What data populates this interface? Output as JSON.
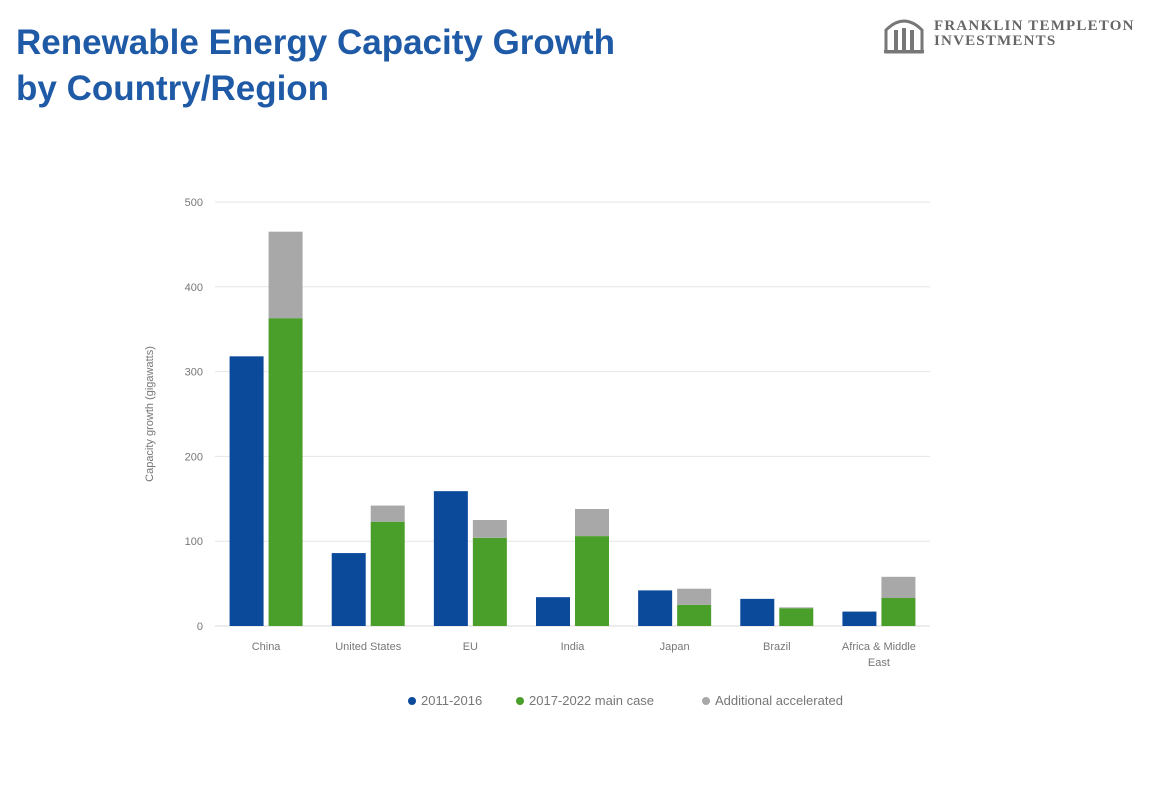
{
  "header": {
    "title_line1": "Renewable Energy Capacity Growth",
    "title_line2": "by Country/Region",
    "logo_line1": "FRANKLIN TEMPLETON",
    "logo_line2": "INVESTMENTS"
  },
  "colors": {
    "title": "#1f5aa6",
    "series_2011_2016": "#0b4a9b",
    "series_2017_2022": "#4a9e2a",
    "series_accelerated": "#a8a8a8",
    "grid": "#e6e6e6"
  },
  "chart_data": {
    "type": "bar",
    "title": "Renewable Energy Capacity Growth by Country/Region",
    "xlabel": "",
    "ylabel": "Capacity growth (gigawatts)",
    "ylim": [
      0,
      500
    ],
    "yticks": [
      0,
      100,
      200,
      300,
      400,
      500
    ],
    "grid": true,
    "legend_position": "bottom",
    "categories": [
      "China",
      "United States",
      "EU",
      "India",
      "Japan",
      "Brazil",
      "Africa & Middle East"
    ],
    "category_labels": [
      [
        "China"
      ],
      [
        "United States"
      ],
      [
        "EU"
      ],
      [
        "India"
      ],
      [
        "Japan"
      ],
      [
        "Brazil"
      ],
      [
        "Africa & Middle",
        "East"
      ]
    ],
    "series": [
      {
        "name": "2011-2016",
        "stack": "a",
        "values": [
          318,
          86,
          159,
          34,
          42,
          32,
          17
        ]
      },
      {
        "name": "2017-2022 main case",
        "stack": "b",
        "values": [
          363,
          123,
          104,
          106,
          25,
          21,
          33
        ]
      },
      {
        "name": "Additional accelerated",
        "stack": "b",
        "values": [
          102,
          19,
          21,
          32,
          19,
          1,
          25
        ]
      }
    ]
  }
}
